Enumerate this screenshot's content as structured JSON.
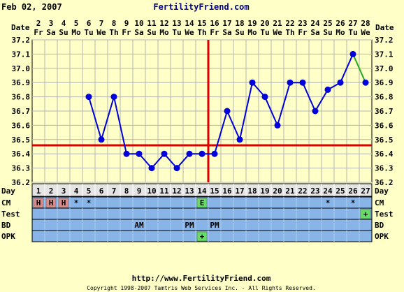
{
  "header": {
    "date": "Feb 02, 2007",
    "site": "FertilityFriend.com"
  },
  "footer": {
    "url": "http://www.FertilityFriend.com",
    "copyright": "Copyright 1998-2007 Tamtris Web Services Inc. - All Rights Reserved."
  },
  "chart_data": {
    "type": "line",
    "title": "",
    "ylim": [
      36.2,
      37.2
    ],
    "y_ticks": [
      "36.2",
      "36.3",
      "36.4",
      "36.5",
      "36.6",
      "36.7",
      "36.8",
      "36.9",
      "37.0",
      "37.1",
      "37.2"
    ],
    "date_row_label": "Date",
    "dates": [
      "2",
      "3",
      "4",
      "5",
      "6",
      "7",
      "8",
      "9",
      "10",
      "11",
      "12",
      "13",
      "14",
      "15",
      "16",
      "17",
      "18",
      "19",
      "20",
      "21",
      "22",
      "23",
      "24",
      "25",
      "26",
      "27",
      "28"
    ],
    "weekdays": [
      "Fr",
      "Sa",
      "Su",
      "Mo",
      "Tu",
      "We",
      "Th",
      "Fr",
      "Sa",
      "Su",
      "Mo",
      "Tu",
      "We",
      "Th",
      "Fr",
      "Sa",
      "Su",
      "Mo",
      "Tu",
      "We",
      "Th",
      "Fr",
      "Sa",
      "Su",
      "Mo",
      "Tu",
      "We"
    ],
    "day_row_label": "Day",
    "days": [
      "1",
      "2",
      "3",
      "4",
      "5",
      "6",
      "7",
      "8",
      "9",
      "10",
      "11",
      "12",
      "13",
      "14",
      "15",
      "16",
      "17",
      "18",
      "19",
      "20",
      "21",
      "22",
      "23",
      "24",
      "25",
      "26",
      "27"
    ],
    "series": [
      {
        "color": "#0000dd",
        "values": [
          null,
          null,
          null,
          null,
          36.8,
          36.5,
          36.8,
          36.4,
          36.4,
          36.3,
          36.4,
          36.3,
          36.4,
          36.4,
          36.4,
          36.7,
          36.5,
          36.9,
          36.8,
          36.6,
          36.9,
          36.9,
          36.7,
          36.85,
          36.9,
          37.1,
          36.9
        ]
      }
    ],
    "last_segment_color": "#22aa22",
    "coverline": 36.46,
    "ovulation_day_index": 14,
    "coverline_color": "#dd0000",
    "rows": {
      "cm": {
        "label": "CM",
        "cells": [
          "H",
          "H",
          "H",
          "*",
          "*",
          "",
          "",
          "",
          "",
          "",
          "",
          "",
          "",
          "E",
          "",
          "",
          "",
          "",
          "",
          "",
          "",
          "",
          "",
          "*",
          "",
          "*",
          ""
        ],
        "colors": {
          "H": "#d88c8c",
          "E": "#66dd66"
        }
      },
      "test": {
        "label": "Test",
        "cells": [
          "",
          "",
          "",
          "",
          "",
          "",
          "",
          "",
          "",
          "",
          "",
          "",
          "",
          "",
          "",
          "",
          "",
          "",
          "",
          "",
          "",
          "",
          "",
          "",
          "",
          "",
          "+"
        ],
        "colors": {
          "+": "#66dd66"
        }
      },
      "bd": {
        "label": "BD",
        "cells": [
          "",
          "",
          "",
          "",
          "",
          "",
          "",
          "",
          "AM",
          "",
          "",
          "",
          "PM",
          "",
          "PM",
          "",
          "",
          "",
          "",
          "",
          "",
          "",
          "",
          "",
          "",
          "",
          ""
        ]
      },
      "opk": {
        "label": "OPK",
        "cells": [
          "",
          "",
          "",
          "",
          "",
          "",
          "",
          "",
          "",
          "",
          "",
          "",
          "",
          "+",
          "",
          "",
          "",
          "",
          "",
          "",
          "",
          "",
          "",
          "",
          "",
          "",
          ""
        ],
        "colors": {
          "+": "#66dd66"
        }
      }
    },
    "grid": true,
    "plot_bg": "#ffffc8",
    "row_bg": "#88b4e8",
    "day_row_bg": "#e4e4e4"
  }
}
